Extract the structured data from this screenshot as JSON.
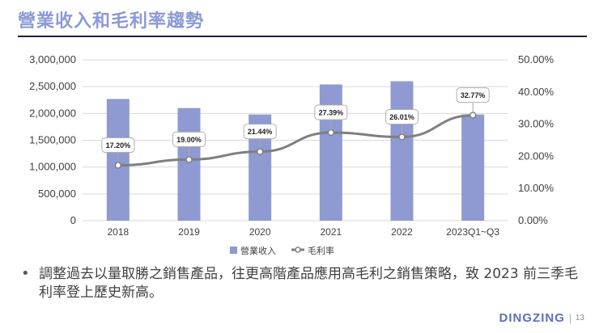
{
  "slide": {
    "title": "營業收入和毛利率趨勢",
    "bullet": "調整過去以量取勝之銷售產品，往更高階產品應用高毛利之銷售策略，致 2023 前三季毛利率登上歷史新高。",
    "brand": "DINGZING",
    "page_number": "13"
  },
  "chart_data": {
    "type": "bar+line",
    "categories": [
      "2018",
      "2019",
      "2020",
      "2021",
      "2022",
      "2023Q1~Q3"
    ],
    "series": [
      {
        "name": "營業收入",
        "type": "bar",
        "axis": "left",
        "color": "#8e9ad1",
        "values": [
          2270000,
          2100000,
          1980000,
          2540000,
          2600000,
          1980000
        ]
      },
      {
        "name": "毛利率",
        "type": "line",
        "axis": "right",
        "color": "#7f7f7f",
        "values": [
          17.2,
          19.0,
          21.44,
          27.39,
          26.01,
          32.77
        ],
        "labels": [
          "17.20%",
          "19.00%",
          "21.44%",
          "27.39%",
          "26.01%",
          "32.77%"
        ]
      }
    ],
    "y_left": {
      "min": 0,
      "max": 3000000,
      "ticks": [
        0,
        500000,
        1000000,
        1500000,
        2000000,
        2500000,
        3000000
      ],
      "tick_labels": [
        "0",
        "500,000",
        "1,000,000",
        "1,500,000",
        "2,000,000",
        "2,500,000",
        "3,000,000"
      ]
    },
    "y_right": {
      "min": 0,
      "max": 50,
      "ticks": [
        0,
        10,
        20,
        30,
        40,
        50
      ],
      "tick_labels": [
        "0.00%",
        "10.00%",
        "20.00%",
        "30.00%",
        "40.00%",
        "50.00%"
      ]
    },
    "legend": [
      "營業收入",
      "毛利率"
    ],
    "legend_position": "bottom",
    "grid": true
  }
}
